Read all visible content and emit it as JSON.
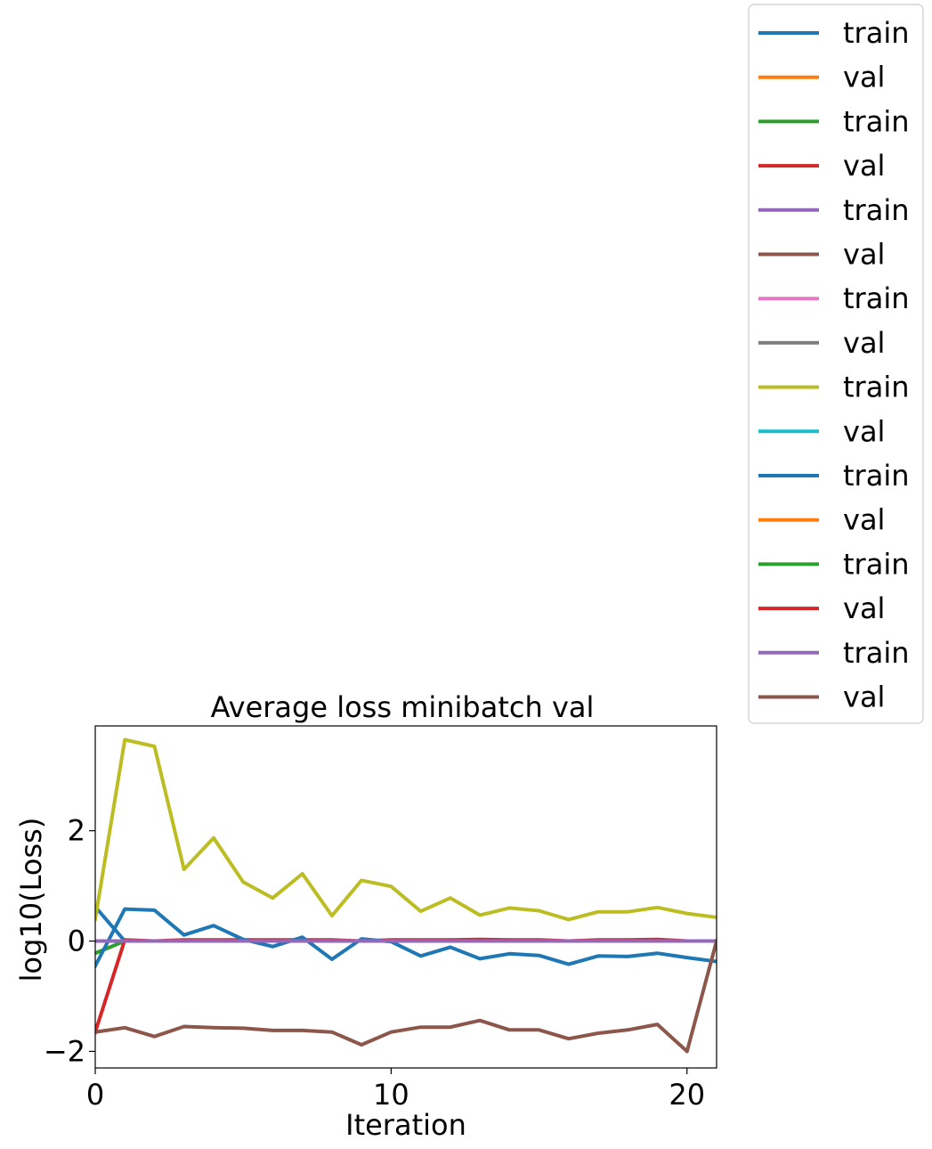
{
  "chart_data": {
    "type": "line",
    "title": "Average loss minibatch val",
    "xlabel": "Iteration",
    "ylabel": "log10(Loss)",
    "xlim": [
      0,
      21
    ],
    "ylim": [
      -2.3,
      3.9
    ],
    "xticks": [
      0,
      10,
      20
    ],
    "xtick_labels": [
      "0",
      "10",
      "20"
    ],
    "yticks": [
      -2,
      0,
      2
    ],
    "ytick_labels": [
      "−2",
      "0",
      "2"
    ],
    "grid": false,
    "legend_position": "outside-right",
    "x": [
      0,
      1,
      2,
      3,
      4,
      5,
      6,
      7,
      8,
      9,
      10,
      11,
      12,
      13,
      14,
      15,
      16,
      17,
      18,
      19,
      20,
      21
    ],
    "series": [
      {
        "name": "train",
        "color": "#1f77b4",
        "values": [
          0.62,
          0.0,
          0.0,
          0.0,
          0.0,
          0.0,
          0.0,
          0.0,
          0.0,
          0.0,
          0.0,
          0.0,
          0.0,
          0.0,
          0.0,
          0.0,
          0.0,
          0.0,
          0.0,
          0.0,
          0.0,
          0.0
        ]
      },
      {
        "name": "val",
        "color": "#ff7f0e",
        "values": [
          0.0,
          0.0,
          0.0,
          0.0,
          0.0,
          0.0,
          0.0,
          0.0,
          0.0,
          0.0,
          0.0,
          0.0,
          0.0,
          0.0,
          0.0,
          0.0,
          0.0,
          0.0,
          0.0,
          0.0,
          0.0,
          0.0
        ]
      },
      {
        "name": "train",
        "color": "#2ca02c",
        "values": [
          -0.22,
          0.0,
          0.0,
          0.0,
          0.0,
          0.0,
          0.0,
          0.0,
          0.0,
          0.0,
          0.0,
          0.0,
          0.0,
          0.0,
          0.0,
          0.0,
          0.0,
          0.0,
          0.0,
          0.0,
          0.0,
          0.0
        ]
      },
      {
        "name": "val",
        "color": "#d62728",
        "values": [
          -1.65,
          0.02,
          0.0,
          0.02,
          0.02,
          0.02,
          0.02,
          0.02,
          0.02,
          0.0,
          0.02,
          0.02,
          0.02,
          0.03,
          0.02,
          0.02,
          0.0,
          0.02,
          0.02,
          0.03,
          0.0,
          0.0
        ]
      },
      {
        "name": "train",
        "color": "#9467bd",
        "values": [
          0.0,
          0.0,
          0.0,
          0.0,
          0.0,
          0.0,
          0.0,
          0.0,
          0.0,
          0.0,
          0.0,
          0.0,
          0.0,
          0.0,
          0.0,
          0.0,
          0.0,
          0.0,
          0.0,
          0.0,
          0.0,
          0.0
        ]
      },
      {
        "name": "val",
        "color": "#8c564b",
        "values": [
          0.0,
          0.0,
          0.0,
          0.0,
          0.0,
          0.0,
          0.0,
          0.0,
          0.0,
          0.0,
          0.0,
          0.0,
          0.0,
          0.0,
          0.0,
          0.0,
          0.0,
          0.0,
          0.0,
          0.0,
          0.0,
          0.0
        ]
      },
      {
        "name": "train",
        "color": "#e377c2",
        "values": [
          0.0,
          0.0,
          0.0,
          0.0,
          0.0,
          0.0,
          0.0,
          0.0,
          0.0,
          0.0,
          0.0,
          0.0,
          0.0,
          0.0,
          0.0,
          0.0,
          0.0,
          0.0,
          0.0,
          0.0,
          0.0,
          0.0
        ]
      },
      {
        "name": "val",
        "color": "#7f7f7f",
        "values": [
          0.0,
          0.0,
          0.0,
          0.0,
          0.0,
          0.0,
          0.0,
          0.0,
          0.0,
          0.0,
          0.0,
          0.0,
          0.0,
          0.0,
          0.0,
          0.0,
          0.0,
          0.0,
          0.0,
          0.0,
          0.0,
          0.0
        ]
      },
      {
        "name": "train",
        "color": "#bcbd22",
        "values": [
          0.4,
          3.65,
          3.53,
          1.3,
          1.87,
          1.07,
          0.78,
          1.22,
          0.46,
          1.1,
          0.99,
          0.54,
          0.78,
          0.47,
          0.6,
          0.55,
          0.39,
          0.53,
          0.53,
          0.61,
          0.5,
          0.43
        ]
      },
      {
        "name": "val",
        "color": "#17becf",
        "values": [
          0.0,
          0.0,
          0.0,
          0.0,
          0.0,
          0.0,
          0.0,
          0.0,
          0.0,
          0.0,
          0.0,
          0.0,
          0.0,
          0.0,
          0.0,
          0.0,
          0.0,
          0.0,
          0.0,
          0.0,
          0.0,
          0.0
        ]
      },
      {
        "name": "train",
        "color": "#1f77b4",
        "values": [
          -0.45,
          0.58,
          0.56,
          0.11,
          0.28,
          0.03,
          -0.1,
          0.07,
          -0.33,
          0.04,
          -0.01,
          -0.27,
          -0.11,
          -0.32,
          -0.23,
          -0.26,
          -0.42,
          -0.27,
          -0.28,
          -0.22,
          -0.3,
          -0.37
        ]
      },
      {
        "name": "val",
        "color": "#ff7f0e",
        "values": [
          0.0,
          0.0,
          0.0,
          0.0,
          0.0,
          0.0,
          0.0,
          0.0,
          0.0,
          0.0,
          0.0,
          0.0,
          0.0,
          0.0,
          0.0,
          0.0,
          0.0,
          0.0,
          0.0,
          0.0,
          0.0,
          0.0
        ]
      },
      {
        "name": "train",
        "color": "#2ca02c",
        "values": [
          0.0,
          0.0,
          0.0,
          0.0,
          0.0,
          0.0,
          0.0,
          0.0,
          0.0,
          0.0,
          0.0,
          0.0,
          0.0,
          0.0,
          0.0,
          0.0,
          0.0,
          0.0,
          0.0,
          0.0,
          0.0,
          0.0
        ]
      },
      {
        "name": "val",
        "color": "#d62728",
        "values": [
          0.0,
          0.0,
          0.0,
          0.0,
          0.0,
          0.0,
          0.0,
          0.0,
          0.0,
          0.0,
          0.0,
          0.0,
          0.0,
          0.0,
          0.0,
          0.0,
          0.0,
          0.0,
          0.0,
          0.0,
          0.0,
          0.0
        ]
      },
      {
        "name": "train",
        "color": "#9467bd",
        "values": [
          0.0,
          0.0,
          0.0,
          0.0,
          0.0,
          0.0,
          0.0,
          0.0,
          0.0,
          0.0,
          0.0,
          0.0,
          0.0,
          0.0,
          0.0,
          0.0,
          0.0,
          0.0,
          0.0,
          0.0,
          0.0,
          0.0
        ]
      },
      {
        "name": "val",
        "color": "#8c564b",
        "values": [
          -1.65,
          -1.57,
          -1.73,
          -1.55,
          -1.57,
          -1.58,
          -1.62,
          -1.62,
          -1.65,
          -1.88,
          -1.65,
          -1.56,
          -1.56,
          -1.44,
          -1.61,
          -1.61,
          -1.77,
          -1.67,
          -1.61,
          -1.51,
          -2.0,
          0.0
        ]
      }
    ]
  }
}
